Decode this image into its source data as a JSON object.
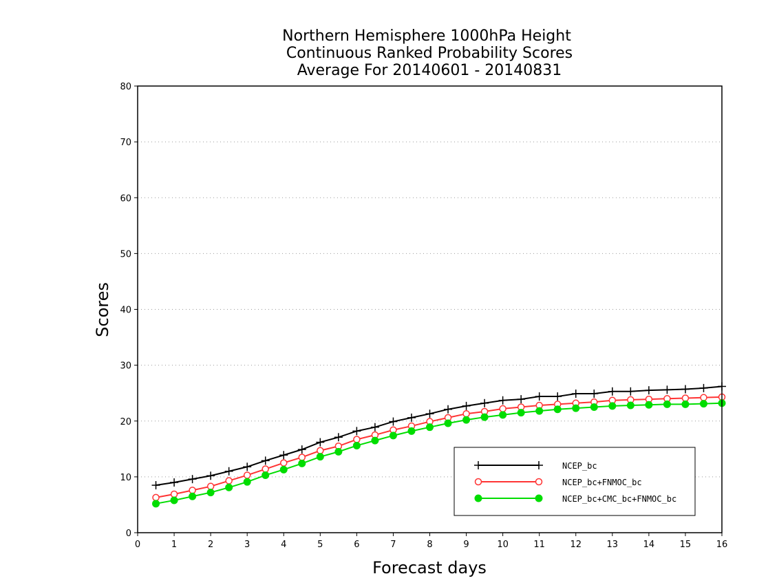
{
  "chart_data": {
    "type": "line",
    "title": [
      "Northern Hemisphere 1000hPa Height",
      "Continuous Ranked Probability Scores",
      "Average For 20140601 - 20140831"
    ],
    "xlabel": "Forecast days",
    "ylabel": "Scores",
    "xlim": [
      0,
      16
    ],
    "ylim": [
      0,
      80
    ],
    "xticks": [
      0,
      1,
      2,
      3,
      4,
      5,
      6,
      7,
      8,
      9,
      10,
      11,
      12,
      13,
      14,
      15,
      16
    ],
    "yticks": [
      0,
      10,
      20,
      30,
      40,
      50,
      60,
      70,
      80
    ],
    "grid": "horizontal dotted",
    "legend_position": "bottom-right",
    "x": [
      0.5,
      1,
      1.5,
      2,
      2.5,
      3,
      3.5,
      4,
      4.5,
      5,
      5.5,
      6,
      6.5,
      7,
      7.5,
      8,
      8.5,
      9,
      9.5,
      10,
      10.5,
      11,
      11.5,
      12,
      12.5,
      13,
      13.5,
      14,
      14.5,
      15,
      15.5,
      16
    ],
    "series": [
      {
        "name": "NCEP_bc",
        "color": "#000000",
        "marker": "plus",
        "values": [
          8.5,
          9.0,
          9.6,
          10.2,
          11.0,
          11.8,
          12.9,
          13.9,
          14.9,
          16.2,
          17.1,
          18.2,
          18.9,
          19.9,
          20.6,
          21.3,
          22.1,
          22.7,
          23.2,
          23.7,
          23.9,
          24.4,
          24.4,
          24.9,
          24.9,
          25.3,
          25.3,
          25.5,
          25.6,
          25.7,
          25.9,
          26.2
        ]
      },
      {
        "name": "NCEP_bc+FNMOC_bc",
        "color": "#ff3333",
        "marker": "open-circle",
        "values": [
          6.3,
          6.9,
          7.6,
          8.3,
          9.3,
          10.3,
          11.4,
          12.5,
          13.5,
          14.7,
          15.5,
          16.7,
          17.5,
          18.4,
          19.1,
          19.9,
          20.6,
          21.3,
          21.7,
          22.2,
          22.5,
          22.8,
          23.0,
          23.2,
          23.4,
          23.7,
          23.8,
          23.9,
          24.0,
          24.1,
          24.2,
          24.3
        ]
      },
      {
        "name": "NCEP_bc+CMC_bc+FNMOC_bc",
        "color": "#00dd00",
        "marker": "filled-circle",
        "values": [
          5.2,
          5.8,
          6.5,
          7.2,
          8.1,
          9.1,
          10.3,
          11.3,
          12.4,
          13.6,
          14.5,
          15.6,
          16.5,
          17.4,
          18.2,
          18.9,
          19.6,
          20.2,
          20.7,
          21.1,
          21.5,
          21.8,
          22.1,
          22.3,
          22.5,
          22.7,
          22.8,
          22.9,
          23.0,
          23.0,
          23.1,
          23.2
        ]
      }
    ]
  }
}
